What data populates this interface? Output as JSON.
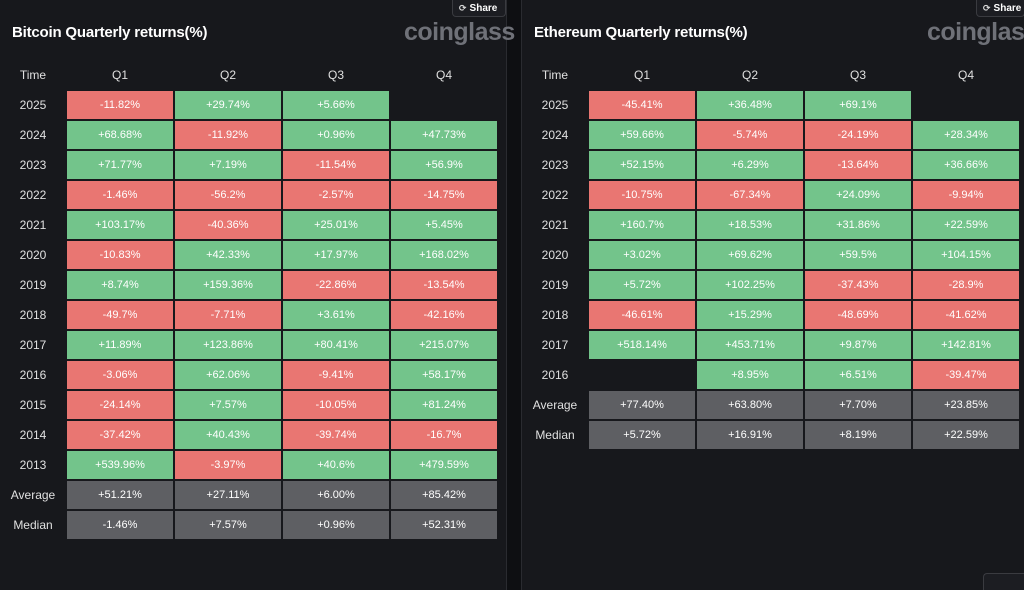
{
  "share_label": "Share",
  "logo_text": "coinglass",
  "tables": [
    {
      "title": "Bitcoin Quarterly returns(%)",
      "headers": [
        "Time",
        "Q1",
        "Q2",
        "Q3",
        "Q4"
      ],
      "rows": [
        {
          "year": "2025",
          "values": [
            "-11.82%",
            "+29.74%",
            "+5.66%",
            ""
          ]
        },
        {
          "year": "2024",
          "values": [
            "+68.68%",
            "-11.92%",
            "+0.96%",
            "+47.73%"
          ]
        },
        {
          "year": "2023",
          "values": [
            "+71.77%",
            "+7.19%",
            "-11.54%",
            "+56.9%"
          ]
        },
        {
          "year": "2022",
          "values": [
            "-1.46%",
            "-56.2%",
            "-2.57%",
            "-14.75%"
          ]
        },
        {
          "year": "2021",
          "values": [
            "+103.17%",
            "-40.36%",
            "+25.01%",
            "+5.45%"
          ]
        },
        {
          "year": "2020",
          "values": [
            "-10.83%",
            "+42.33%",
            "+17.97%",
            "+168.02%"
          ]
        },
        {
          "year": "2019",
          "values": [
            "+8.74%",
            "+159.36%",
            "-22.86%",
            "-13.54%"
          ]
        },
        {
          "year": "2018",
          "values": [
            "-49.7%",
            "-7.71%",
            "+3.61%",
            "-42.16%"
          ]
        },
        {
          "year": "2017",
          "values": [
            "+11.89%",
            "+123.86%",
            "+80.41%",
            "+215.07%"
          ]
        },
        {
          "year": "2016",
          "values": [
            "-3.06%",
            "+62.06%",
            "-9.41%",
            "+58.17%"
          ]
        },
        {
          "year": "2015",
          "values": [
            "-24.14%",
            "+7.57%",
            "-10.05%",
            "+81.24%"
          ]
        },
        {
          "year": "2014",
          "values": [
            "-37.42%",
            "+40.43%",
            "-39.74%",
            "-16.7%"
          ]
        },
        {
          "year": "2013",
          "values": [
            "+539.96%",
            "-3.97%",
            "+40.6%",
            "+479.59%"
          ]
        }
      ],
      "summary": [
        {
          "label": "Average",
          "values": [
            "+51.21%",
            "+27.11%",
            "+6.00%",
            "+85.42%"
          ]
        },
        {
          "label": "Median",
          "values": [
            "-1.46%",
            "+7.57%",
            "+0.96%",
            "+52.31%"
          ]
        }
      ]
    },
    {
      "title": "Ethereum Quarterly returns(%)",
      "headers": [
        "Time",
        "Q1",
        "Q2",
        "Q3",
        "Q4"
      ],
      "rows": [
        {
          "year": "2025",
          "values": [
            "-45.41%",
            "+36.48%",
            "+69.1%",
            ""
          ]
        },
        {
          "year": "2024",
          "values": [
            "+59.66%",
            "-5.74%",
            "-24.19%",
            "+28.34%"
          ]
        },
        {
          "year": "2023",
          "values": [
            "+52.15%",
            "+6.29%",
            "-13.64%",
            "+36.66%"
          ]
        },
        {
          "year": "2022",
          "values": [
            "-10.75%",
            "-67.34%",
            "+24.09%",
            "-9.94%"
          ]
        },
        {
          "year": "2021",
          "values": [
            "+160.7%",
            "+18.53%",
            "+31.86%",
            "+22.59%"
          ]
        },
        {
          "year": "2020",
          "values": [
            "+3.02%",
            "+69.62%",
            "+59.5%",
            "+104.15%"
          ]
        },
        {
          "year": "2019",
          "values": [
            "+5.72%",
            "+102.25%",
            "-37.43%",
            "-28.9%"
          ]
        },
        {
          "year": "2018",
          "values": [
            "-46.61%",
            "+15.29%",
            "-48.69%",
            "-41.62%"
          ]
        },
        {
          "year": "2017",
          "values": [
            "+518.14%",
            "+453.71%",
            "+9.87%",
            "+142.81%"
          ]
        },
        {
          "year": "2016",
          "values": [
            "",
            "+8.95%",
            "+6.51%",
            "-39.47%"
          ]
        }
      ],
      "summary": [
        {
          "label": "Average",
          "values": [
            "+77.40%",
            "+63.80%",
            "+7.70%",
            "+23.85%"
          ]
        },
        {
          "label": "Median",
          "values": [
            "+5.72%",
            "+16.91%",
            "+8.19%",
            "+22.59%"
          ]
        }
      ]
    }
  ],
  "colors": {
    "positive": "#73c48b",
    "negative": "#e97672",
    "summary": "#5e5f63",
    "panel_bg": "#17181c"
  },
  "chart_data": [
    {
      "type": "heatmap",
      "title": "Bitcoin Quarterly returns(%)",
      "x": [
        "Q1",
        "Q2",
        "Q3",
        "Q4"
      ],
      "y": [
        "2025",
        "2024",
        "2023",
        "2022",
        "2021",
        "2020",
        "2019",
        "2018",
        "2017",
        "2016",
        "2015",
        "2014",
        "2013"
      ],
      "values": [
        [
          -11.82,
          29.74,
          5.66,
          null
        ],
        [
          68.68,
          -11.92,
          0.96,
          47.73
        ],
        [
          71.77,
          7.19,
          -11.54,
          56.9
        ],
        [
          -1.46,
          -56.2,
          -2.57,
          -14.75
        ],
        [
          103.17,
          -40.36,
          25.01,
          5.45
        ],
        [
          -10.83,
          42.33,
          17.97,
          168.02
        ],
        [
          8.74,
          159.36,
          -22.86,
          -13.54
        ],
        [
          -49.7,
          -7.71,
          3.61,
          -42.16
        ],
        [
          11.89,
          123.86,
          80.41,
          215.07
        ],
        [
          -3.06,
          62.06,
          -9.41,
          58.17
        ],
        [
          -24.14,
          7.57,
          -10.05,
          81.24
        ],
        [
          -37.42,
          40.43,
          -39.74,
          -16.7
        ],
        [
          539.96,
          -3.97,
          40.6,
          479.59
        ]
      ],
      "average": [
        51.21,
        27.11,
        6.0,
        85.42
      ],
      "median": [
        -1.46,
        7.57,
        0.96,
        52.31
      ]
    },
    {
      "type": "heatmap",
      "title": "Ethereum Quarterly returns(%)",
      "x": [
        "Q1",
        "Q2",
        "Q3",
        "Q4"
      ],
      "y": [
        "2025",
        "2024",
        "2023",
        "2022",
        "2021",
        "2020",
        "2019",
        "2018",
        "2017",
        "2016"
      ],
      "values": [
        [
          -45.41,
          36.48,
          69.1,
          null
        ],
        [
          59.66,
          -5.74,
          -24.19,
          28.34
        ],
        [
          52.15,
          6.29,
          -13.64,
          36.66
        ],
        [
          -10.75,
          -67.34,
          24.09,
          -9.94
        ],
        [
          160.7,
          18.53,
          31.86,
          22.59
        ],
        [
          3.02,
          69.62,
          59.5,
          104.15
        ],
        [
          5.72,
          102.25,
          -37.43,
          -28.9
        ],
        [
          -46.61,
          15.29,
          -48.69,
          -41.62
        ],
        [
          518.14,
          453.71,
          9.87,
          142.81
        ],
        [
          null,
          8.95,
          6.51,
          -39.47
        ]
      ],
      "average": [
        77.4,
        63.8,
        7.7,
        23.85
      ],
      "median": [
        5.72,
        16.91,
        8.19,
        22.59
      ]
    }
  ]
}
